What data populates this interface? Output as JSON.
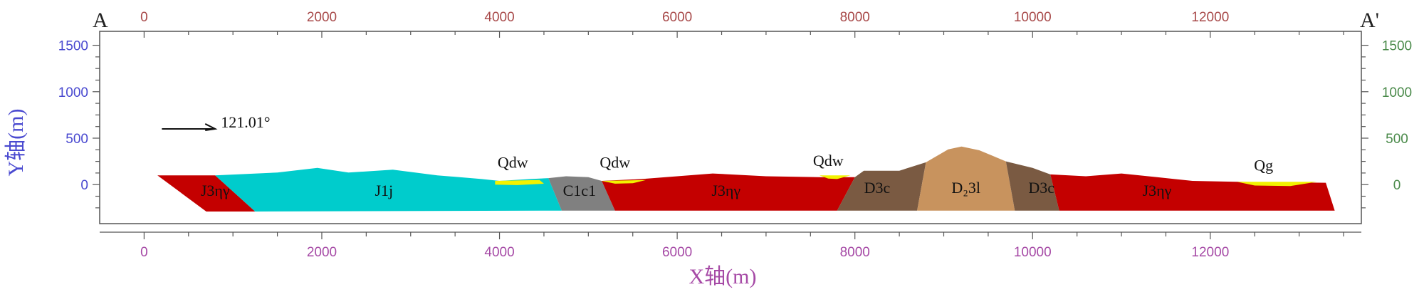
{
  "corner_left": "A",
  "corner_right": "A'",
  "axes": {
    "x_ticks": [
      0,
      2000,
      4000,
      6000,
      8000,
      10000,
      12000
    ],
    "y_ticks": [
      0,
      500,
      1000,
      1500
    ],
    "x_label": "X轴(m)",
    "y_label": "Y轴(m)",
    "x_range": [
      -500,
      13700
    ],
    "y_range": [
      -420,
      1650
    ],
    "colors": {
      "x": "#a64aa6",
      "y_left": "#4a4ad0",
      "y_right": "#4a8a4a",
      "frame": "#555555"
    }
  },
  "azimuth": {
    "label": "121.01°",
    "start": [
      200,
      600
    ],
    "end": [
      800,
      600
    ]
  },
  "units": [
    {
      "name": "J3ηγ",
      "label": "J3ηγ",
      "color": "#c40000",
      "polygon": [
        [
          150,
          100
        ],
        [
          800,
          100
        ],
        [
          1250,
          -290
        ],
        [
          700,
          -290
        ]
      ],
      "label_at": [
        800,
        -120
      ]
    },
    {
      "name": "J1j",
      "label": "J1j",
      "color": "#00cccc",
      "polygon": [
        [
          800,
          100
        ],
        [
          1500,
          130
        ],
        [
          1950,
          180
        ],
        [
          2300,
          130
        ],
        [
          2800,
          160
        ],
        [
          3300,
          100
        ],
        [
          3800,
          60
        ],
        [
          4000,
          40
        ],
        [
          4350,
          60
        ],
        [
          4550,
          70
        ],
        [
          4700,
          -280
        ],
        [
          1250,
          -290
        ]
      ],
      "label_at": [
        2700,
        -120
      ]
    },
    {
      "name": "C1c1",
      "label": "C1c1",
      "color": "#808080",
      "polygon": [
        [
          4550,
          70
        ],
        [
          4750,
          90
        ],
        [
          5000,
          80
        ],
        [
          5150,
          40
        ],
        [
          5300,
          -280
        ],
        [
          4700,
          -280
        ]
      ],
      "label_at": [
        4900,
        -120
      ]
    },
    {
      "name": "J3ηγ",
      "label": "J3ηγ",
      "color": "#c40000",
      "polygon": [
        [
          5150,
          40
        ],
        [
          5600,
          60
        ],
        [
          6000,
          90
        ],
        [
          6400,
          120
        ],
        [
          7000,
          90
        ],
        [
          7600,
          80
        ],
        [
          8000,
          80
        ],
        [
          7800,
          -280
        ],
        [
          5300,
          -280
        ]
      ],
      "label_at": [
        6550,
        -120
      ]
    },
    {
      "name": "D3c",
      "label": "D3c",
      "color": "#7a5a42",
      "polygon": [
        [
          8000,
          80
        ],
        [
          8100,
          150
        ],
        [
          8500,
          150
        ],
        [
          8800,
          240
        ],
        [
          8700,
          -280
        ],
        [
          7800,
          -280
        ]
      ],
      "label_at": [
        8250,
        -90
      ]
    },
    {
      "name": "D₂3l",
      "label": "D₂3l",
      "color": "#c8935e",
      "polygon": [
        [
          8800,
          240
        ],
        [
          9050,
          380
        ],
        [
          9200,
          410
        ],
        [
          9400,
          370
        ],
        [
          9700,
          250
        ],
        [
          9800,
          -280
        ],
        [
          8700,
          -280
        ]
      ],
      "label_at": [
        9250,
        -90
      ]
    },
    {
      "name": "D3c",
      "label": "D3c",
      "color": "#7a5a42",
      "polygon": [
        [
          9700,
          250
        ],
        [
          10000,
          180
        ],
        [
          10200,
          110
        ],
        [
          10300,
          -280
        ],
        [
          9800,
          -280
        ]
      ],
      "label_at": [
        10100,
        -90
      ]
    },
    {
      "name": "J3ηγ",
      "label": "J3ηγ",
      "color": "#c40000",
      "polygon": [
        [
          10200,
          110
        ],
        [
          10600,
          90
        ],
        [
          11000,
          120
        ],
        [
          11400,
          80
        ],
        [
          11800,
          40
        ],
        [
          12300,
          30
        ],
        [
          13300,
          20
        ],
        [
          13400,
          -280
        ],
        [
          10300,
          -280
        ]
      ],
      "label_at": [
        11400,
        -120
      ]
    },
    {
      "name": "Qdw",
      "label": "Qdw",
      "color": "#f2f200",
      "polygon": [
        [
          3950,
          40
        ],
        [
          4450,
          50
        ],
        [
          4500,
          10
        ],
        [
          4200,
          -5
        ],
        [
          3950,
          0
        ]
      ],
      "label_at": [
        4150,
        180
      ]
    },
    {
      "name": "Qdw",
      "label": "Qdw",
      "color": "#f2f200",
      "polygon": [
        [
          5150,
          40
        ],
        [
          5650,
          50
        ],
        [
          5500,
          15
        ],
        [
          5300,
          10
        ]
      ],
      "label_at": [
        5300,
        180
      ]
    },
    {
      "name": "Qdw",
      "label": "Qdw",
      "color": "#f2f200",
      "polygon": [
        [
          7600,
          100
        ],
        [
          7950,
          100
        ],
        [
          7800,
          60
        ],
        [
          7700,
          65
        ]
      ],
      "label_at": [
        7700,
        200
      ]
    },
    {
      "name": "Qg",
      "label": "Qg",
      "color": "#f2f200",
      "polygon": [
        [
          12300,
          30
        ],
        [
          13200,
          30
        ],
        [
          12900,
          -15
        ],
        [
          12500,
          -10
        ]
      ],
      "label_at": [
        12600,
        150
      ]
    }
  ]
}
